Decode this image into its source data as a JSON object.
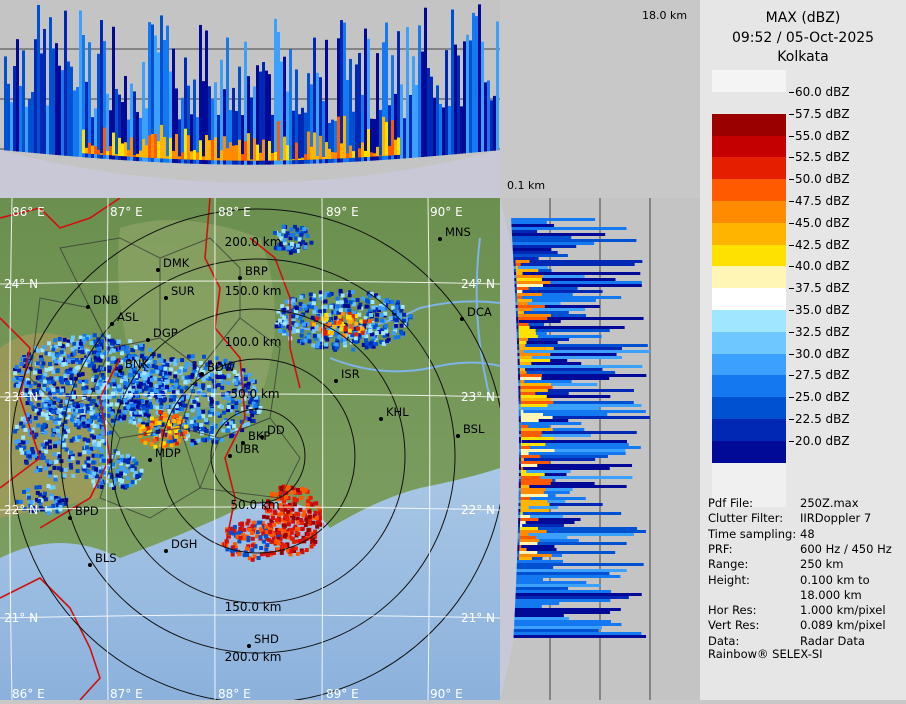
{
  "header": {
    "product": "MAX (dBZ)",
    "datetime": "09:52 / 05-Oct-2025",
    "site": "Kolkata"
  },
  "profiles": {
    "top_height_label": "18.0 km",
    "side_height_label": "0.1 km"
  },
  "legend": {
    "unit": "dBZ",
    "levels": [
      {
        "label": "60.0 dBZ",
        "color": "#f4f4f4"
      },
      {
        "label": "57.5 dBZ",
        "color": "#9b0000"
      },
      {
        "label": "55.0 dBZ",
        "color": "#c40000"
      },
      {
        "label": "52.5 dBZ",
        "color": "#e61e00"
      },
      {
        "label": "50.0 dBZ",
        "color": "#ff5a00"
      },
      {
        "label": "47.5 dBZ",
        "color": "#ff8c00"
      },
      {
        "label": "45.0 dBZ",
        "color": "#ffb400"
      },
      {
        "label": "42.5 dBZ",
        "color": "#ffe100"
      },
      {
        "label": "40.0 dBZ",
        "color": "#fff5b4"
      },
      {
        "label": "37.5 dBZ",
        "color": "#ffffff"
      },
      {
        "label": "35.0 dBZ",
        "color": "#a0e6ff"
      },
      {
        "label": "32.5 dBZ",
        "color": "#6ec8ff"
      },
      {
        "label": "30.0 dBZ",
        "color": "#3ca0ff"
      },
      {
        "label": "27.5 dBZ",
        "color": "#1478f0"
      },
      {
        "label": "25.0 dBZ",
        "color": "#0050d2"
      },
      {
        "label": "22.5 dBZ",
        "color": "#0028b4"
      },
      {
        "label": "20.0 dBZ",
        "color": "#000a96"
      }
    ]
  },
  "info": [
    {
      "key": "Pdf File:",
      "value": "250Z.max"
    },
    {
      "key": "Clutter Filter:",
      "value": "IIRDoppler 7"
    },
    {
      "key": "Time sampling:",
      "value": "48"
    },
    {
      "key": "PRF:",
      "value": "600 Hz / 450 Hz"
    },
    {
      "key": "Range:",
      "value": "250 km"
    },
    {
      "key": "Height:",
      "value": "0.100 km to"
    },
    {
      "key": "",
      "value": "18.000 km"
    },
    {
      "key": "Hor Res:",
      "value": "1.000 km/pixel"
    },
    {
      "key": "Vert Res:",
      "value": "0.089 km/pixel"
    },
    {
      "key": "Data:",
      "value": "Radar Data"
    }
  ],
  "footer": "Rainbow® SELEX-SI",
  "map": {
    "lon_labels": [
      "86° E",
      "87° E",
      "88° E",
      "89° E",
      "90° E"
    ],
    "lat_labels": [
      "24° N",
      "23° N",
      "22° N",
      "21° N"
    ],
    "range_labels": [
      "50.0 km",
      "100.0 km",
      "150.0 km",
      "200.0 km"
    ],
    "stations": [
      {
        "code": "MNS"
      },
      {
        "code": "DMK"
      },
      {
        "code": "BRP"
      },
      {
        "code": "DNB"
      },
      {
        "code": "SUR"
      },
      {
        "code": "DCA"
      },
      {
        "code": "ASL"
      },
      {
        "code": "DGP"
      },
      {
        "code": "BDW"
      },
      {
        "code": "ISR"
      },
      {
        "code": "KHL"
      },
      {
        "code": "BSL"
      },
      {
        "code": "MDP"
      },
      {
        "code": "DD"
      },
      {
        "code": "UBR"
      },
      {
        "code": "BPD"
      },
      {
        "code": "DGH"
      },
      {
        "code": "BLS"
      },
      {
        "code": "SHD"
      },
      {
        "code": "BKP"
      },
      {
        "code": "BNK"
      }
    ]
  }
}
